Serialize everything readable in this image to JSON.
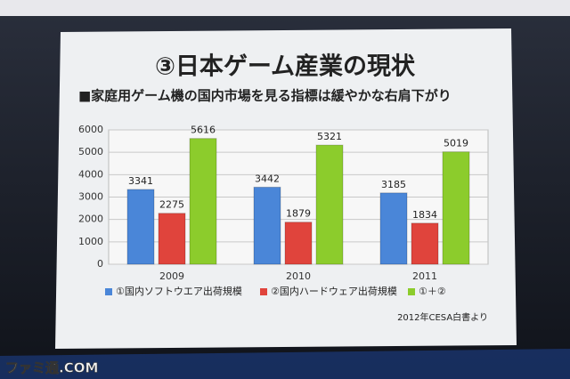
{
  "chart_data": {
    "type": "bar",
    "title": "③日本ゲーム産業の現状",
    "subtitle": "■家庭用ゲーム機の国内市場を見る指標は緩やかな右肩下がり",
    "categories": [
      "2009",
      "2010",
      "2011"
    ],
    "series": [
      {
        "name": "①国内ソフトウエア出荷規模",
        "color": "#4a86d8",
        "values": [
          3341,
          3442,
          3185
        ]
      },
      {
        "name": "②国内ハードウェア出荷規模",
        "color": "#e0443c",
        "values": [
          2275,
          1879,
          1834
        ]
      },
      {
        "name": "①＋②",
        "color": "#8ccc2c",
        "values": [
          5616,
          5321,
          5019
        ]
      }
    ],
    "ylim": [
      0,
      6000
    ],
    "yticks": [
      0,
      1000,
      2000,
      3000,
      4000,
      5000,
      6000
    ],
    "grid": true,
    "legend": "bottom",
    "source": "2012年CESA白書より",
    "watermark": "ファミ通.COM"
  }
}
